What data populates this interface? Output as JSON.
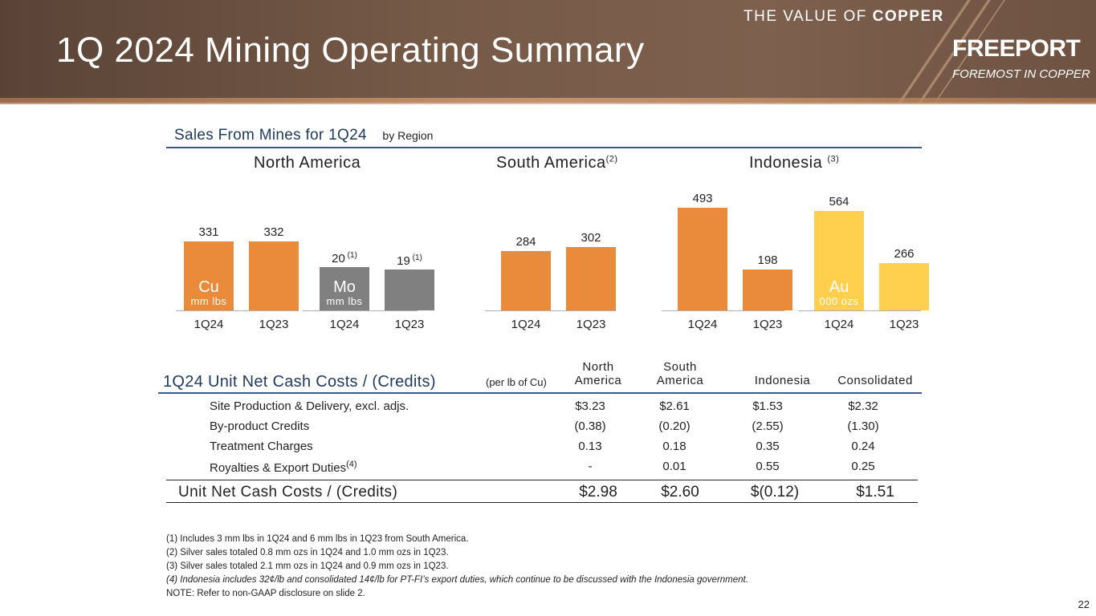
{
  "header": {
    "title": "1Q 2024 Mining Operating Summary",
    "tagline_light": "THE VALUE OF ",
    "tagline_bold": "COPPER",
    "brand": "FREEPORT",
    "brand_sub": "FOREMOST IN COPPER"
  },
  "sales_section": {
    "title": "Sales From Mines for 1Q24",
    "subtitle": "by Region",
    "regions": [
      {
        "name": "North America",
        "note": ""
      },
      {
        "name": "South America",
        "note": "(2)"
      },
      {
        "name": "Indonesia",
        "note": "(3)"
      }
    ]
  },
  "chart_data": {
    "type": "bar",
    "title": "Sales From Mines for 1Q24",
    "groups": [
      {
        "region": "North America",
        "metal": "Cu",
        "unit": "mm lbs",
        "categories": [
          "1Q24",
          "1Q23"
        ],
        "values": [
          331,
          332
        ],
        "labels": [
          "331",
          "332"
        ],
        "notes": [
          "",
          ""
        ],
        "color": "#ea8b3c"
      },
      {
        "region": "North America",
        "metal": "Mo",
        "unit": "mm lbs",
        "categories": [
          "1Q24",
          "1Q23"
        ],
        "values": [
          20,
          19
        ],
        "labels": [
          "20",
          "19"
        ],
        "notes": [
          "(1)",
          "(1)"
        ],
        "color": "#808080"
      },
      {
        "region": "South America",
        "metal": "",
        "unit": "",
        "categories": [
          "1Q24",
          "1Q23"
        ],
        "values": [
          284,
          302
        ],
        "labels": [
          "284",
          "302"
        ],
        "notes": [
          "",
          ""
        ],
        "color": "#ea8b3c"
      },
      {
        "region": "Indonesia",
        "metal": "",
        "unit": "",
        "categories": [
          "1Q24",
          "1Q23"
        ],
        "values": [
          493,
          198
        ],
        "labels": [
          "493",
          "198"
        ],
        "notes": [
          "",
          ""
        ],
        "color": "#ea8b3c"
      },
      {
        "region": "Indonesia",
        "metal": "Au",
        "unit": "000 ozs",
        "categories": [
          "1Q24",
          "1Q23"
        ],
        "values": [
          564,
          266
        ],
        "labels": [
          "564",
          "266"
        ],
        "notes": [
          "",
          ""
        ],
        "color": "#ffcf4d"
      }
    ]
  },
  "cost_table": {
    "title": "1Q24 Unit Net Cash Costs / (Credits)",
    "note": "(per lb of Cu)",
    "columns": [
      [
        "North",
        "America"
      ],
      [
        "South",
        "America"
      ],
      [
        "",
        "Indonesia"
      ],
      [
        "",
        "Consolidated"
      ]
    ],
    "rows": [
      {
        "label": "Site Production & Delivery, excl. adjs.",
        "note": "",
        "values": [
          "$3.23",
          "$2.61",
          "$1.53",
          "$2.32"
        ]
      },
      {
        "label": "By-product Credits",
        "note": "",
        "values": [
          "(0.38)",
          "(0.20)",
          "(2.55)",
          "(1.30)"
        ]
      },
      {
        "label": "Treatment Charges",
        "note": "",
        "values": [
          "0.13",
          "0.18",
          "0.35",
          "0.24"
        ]
      },
      {
        "label": "Royalties & Export Duties",
        "note": "(4)",
        "values": [
          "-",
          "0.01",
          "0.55",
          "0.25"
        ]
      }
    ],
    "total": {
      "label": "Unit Net Cash Costs / (Credits)",
      "values": [
        "$2.98",
        "$2.60",
        "$(0.12)",
        "$1.51"
      ]
    }
  },
  "footnotes": [
    "(1) Includes 3 mm lbs in 1Q24 and 6 mm lbs in 1Q23 from South America.",
    "(2) Silver sales totaled 0.8 mm ozs in 1Q24 and 1.0 mm ozs in 1Q23.",
    "(3) Silver sales totaled 2.1 mm ozs in 1Q24 and 0.9 mm ozs in 1Q23.",
    "(4) Indonesia includes 32¢/lb and consolidated 14¢/lb for PT-FI’s export duties, which continue to be discussed with the Indonesia government.",
    "NOTE: Refer to non-GAAP disclosure on slide 2."
  ],
  "page_number": "22"
}
